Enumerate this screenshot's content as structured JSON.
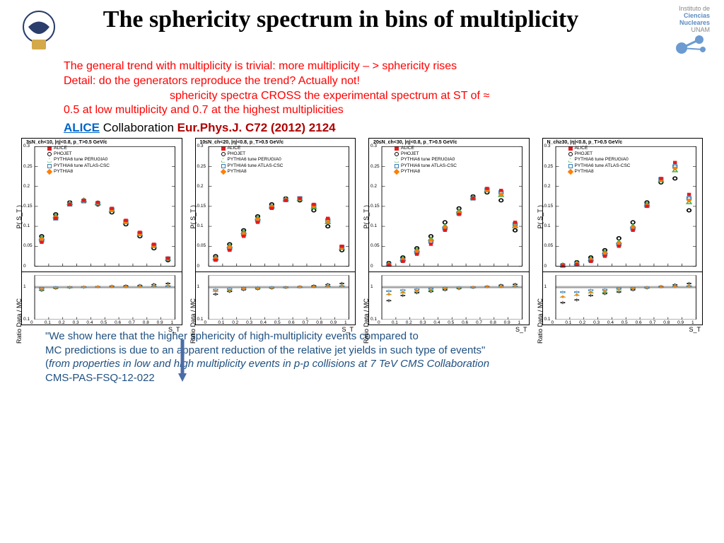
{
  "title": "The sphericity spectrum in bins of multiplicity",
  "logos": {
    "left_alt": "UNAM shield",
    "right_line1": "Instituto de",
    "right_line2": "Ciencias",
    "right_line3": "Nucleares",
    "right_line4": "UNAM"
  },
  "red_text": {
    "line1": "The general trend with multiplicity is  trivial: more multiplicity – > sphericity rises",
    "line2": "Detail: do the generators reproduce the trend? Actually not!",
    "line3_indent": "sphericity spectra CROSS the experimental spectrum at ST of ≈",
    "line4": "0.5 at low multiplicity and 0.7 at the highest multiplicities"
  },
  "alice": {
    "link": "ALICE",
    "collab": " Collaboration ",
    "ref": "Eur.Phys.J. C72 (2012) 2124"
  },
  "footer": {
    "q1": "\"We show here that the higher sphericity of high-multiplicity events compared to",
    "q2": "MC predictions is due to an apparent reduction of the relative jet yields in such type of events\"",
    "q3_open": "(",
    "q3_italic": "from  properties in low and high multiplicity events in p-p collisions at 7 TeV CMS Collaboration",
    "q4": "CMS-PAS-FSQ-12-022"
  },
  "chart_common": {
    "y_main_label": "P( S_T )",
    "y_ratio_label": "Ratio  Data / MC",
    "x_label": "S_T",
    "y_main_lim": [
      0,
      0.3
    ],
    "y_main_ticks": [
      0,
      0.05,
      0.1,
      0.15,
      0.2,
      0.25,
      0.3
    ],
    "y_ratio_ticks": [
      0.1,
      1
    ],
    "x_ticks": [
      0,
      0.1,
      0.2,
      0.3,
      0.4,
      0.5,
      0.6,
      0.7,
      0.8,
      0.9,
      1
    ],
    "legend_items": [
      {
        "label": "ALICE",
        "color": "#e41a1c",
        "marker": "square-fill"
      },
      {
        "label": "PHOJET",
        "color": "#000000",
        "marker": "circle-open"
      },
      {
        "label": "PYTHIA6 tune PERUGIA0",
        "color": "#4daf4a",
        "marker": "triangle-open"
      },
      {
        "label": "PYTHIA6 tune ATLAS-CSC",
        "color": "#377eb8",
        "marker": "square-open"
      },
      {
        "label": "PYTHIA8",
        "color": "#ff7f00",
        "marker": "diamond-fill"
      }
    ],
    "colors": {
      "alice": "#e41a1c",
      "phojet": "#000000",
      "perugia": "#4daf4a",
      "atlas": "#377eb8",
      "pythia8": "#ff7f00",
      "grid": "#cccccc",
      "ratio_band": "#d0d0d0"
    },
    "marker_size": 4,
    "x_bins": [
      0.05,
      0.15,
      0.25,
      0.35,
      0.45,
      0.55,
      0.65,
      0.75,
      0.85,
      0.95
    ]
  },
  "panels": [
    {
      "title": "3≤N_ch<10, |η|<0.8, p_T>0.5 GeV/c",
      "alice": [
        0.06,
        0.12,
        0.155,
        0.165,
        0.16,
        0.145,
        0.115,
        0.085,
        0.055,
        0.02
      ],
      "phojet": [
        0.075,
        0.13,
        0.16,
        0.165,
        0.155,
        0.135,
        0.105,
        0.075,
        0.045,
        0.015
      ],
      "perugia": [
        0.07,
        0.125,
        0.158,
        0.165,
        0.158,
        0.14,
        0.11,
        0.08,
        0.05,
        0.018
      ],
      "atlas": [
        0.065,
        0.12,
        0.155,
        0.163,
        0.157,
        0.142,
        0.112,
        0.082,
        0.052,
        0.019
      ],
      "pythia8": [
        0.068,
        0.123,
        0.156,
        0.164,
        0.158,
        0.14,
        0.11,
        0.08,
        0.05,
        0.018
      ],
      "ratio_phojet": [
        0.8,
        0.92,
        0.97,
        1.0,
        1.03,
        1.07,
        1.1,
        1.13,
        1.2,
        1.3
      ],
      "ratio_perugia": [
        0.85,
        0.95,
        0.98,
        1.0,
        1.02,
        1.04,
        1.05,
        1.07,
        1.1,
        1.12
      ],
      "ratio_atlas": [
        0.92,
        0.98,
        1.0,
        1.01,
        1.02,
        1.02,
        1.03,
        1.04,
        1.05,
        1.06
      ],
      "ratio_pythia8": [
        0.88,
        0.96,
        0.99,
        1.0,
        1.02,
        1.03,
        1.05,
        1.07,
        1.1,
        1.12
      ]
    },
    {
      "title": "10≤N_ch<20, |η|<0.8, p_T>0.5 GeV/c",
      "alice": [
        0.015,
        0.04,
        0.075,
        0.11,
        0.145,
        0.165,
        0.17,
        0.155,
        0.12,
        0.05
      ],
      "phojet": [
        0.025,
        0.055,
        0.09,
        0.125,
        0.155,
        0.17,
        0.165,
        0.14,
        0.1,
        0.04
      ],
      "perugia": [
        0.02,
        0.05,
        0.085,
        0.12,
        0.15,
        0.168,
        0.168,
        0.148,
        0.11,
        0.045
      ],
      "atlas": [
        0.018,
        0.045,
        0.08,
        0.115,
        0.148,
        0.166,
        0.17,
        0.152,
        0.115,
        0.048
      ],
      "pythia8": [
        0.02,
        0.048,
        0.082,
        0.118,
        0.15,
        0.167,
        0.168,
        0.15,
        0.112,
        0.046
      ],
      "ratio_phojet": [
        0.6,
        0.73,
        0.83,
        0.88,
        0.93,
        0.97,
        1.03,
        1.1,
        1.2,
        1.3
      ],
      "ratio_perugia": [
        0.75,
        0.8,
        0.88,
        0.92,
        0.96,
        0.98,
        1.01,
        1.05,
        1.1,
        1.12
      ],
      "ratio_atlas": [
        0.83,
        0.88,
        0.93,
        0.96,
        0.98,
        0.99,
        1.0,
        1.02,
        1.05,
        1.06
      ],
      "ratio_pythia8": [
        0.75,
        0.82,
        0.9,
        0.93,
        0.96,
        0.98,
        1.01,
        1.04,
        1.08,
        1.1
      ]
    },
    {
      "title": "20≤N_ch<30, |η|<0.8, p_T>0.5 GeV/c",
      "alice": [
        0.003,
        0.012,
        0.03,
        0.055,
        0.09,
        0.13,
        0.17,
        0.195,
        0.19,
        0.11
      ],
      "phojet": [
        0.008,
        0.022,
        0.045,
        0.075,
        0.11,
        0.145,
        0.175,
        0.185,
        0.165,
        0.09
      ],
      "perugia": [
        0.005,
        0.018,
        0.04,
        0.068,
        0.1,
        0.138,
        0.172,
        0.19,
        0.178,
        0.1
      ],
      "atlas": [
        0.004,
        0.015,
        0.035,
        0.062,
        0.095,
        0.133,
        0.17,
        0.192,
        0.185,
        0.105
      ],
      "pythia8": [
        0.005,
        0.017,
        0.038,
        0.065,
        0.098,
        0.135,
        0.17,
        0.19,
        0.18,
        0.1
      ],
      "ratio_phojet": [
        0.38,
        0.55,
        0.67,
        0.73,
        0.82,
        0.9,
        0.97,
        1.05,
        1.15,
        1.22
      ],
      "ratio_perugia": [
        0.6,
        0.67,
        0.75,
        0.81,
        0.9,
        0.94,
        0.99,
        1.03,
        1.07,
        1.1
      ],
      "ratio_atlas": [
        0.75,
        0.8,
        0.85,
        0.9,
        0.95,
        0.97,
        1.0,
        1.02,
        1.03,
        1.05
      ],
      "ratio_pythia8": [
        0.6,
        0.7,
        0.78,
        0.84,
        0.92,
        0.96,
        1.0,
        1.03,
        1.06,
        1.1
      ]
    },
    {
      "title": "N_ch≥30, |η|<0.8, p_T>0.5 GeV/c",
      "alice": [
        0.001,
        0.004,
        0.012,
        0.025,
        0.05,
        0.09,
        0.15,
        0.22,
        0.26,
        0.18
      ],
      "phojet": [
        0.003,
        0.01,
        0.022,
        0.04,
        0.07,
        0.11,
        0.16,
        0.21,
        0.22,
        0.14
      ],
      "perugia": [
        0.002,
        0.007,
        0.018,
        0.035,
        0.06,
        0.1,
        0.155,
        0.215,
        0.24,
        0.16
      ],
      "atlas": [
        0.0015,
        0.006,
        0.015,
        0.03,
        0.055,
        0.095,
        0.152,
        0.218,
        0.25,
        0.17
      ],
      "pythia8": [
        0.002,
        0.007,
        0.017,
        0.033,
        0.058,
        0.098,
        0.153,
        0.216,
        0.245,
        0.165
      ],
      "ratio_phojet": [
        0.33,
        0.4,
        0.55,
        0.63,
        0.71,
        0.82,
        0.94,
        1.05,
        1.18,
        1.3
      ],
      "ratio_perugia": [
        0.5,
        0.57,
        0.67,
        0.71,
        0.83,
        0.9,
        0.97,
        1.02,
        1.08,
        1.12
      ],
      "ratio_atlas": [
        0.7,
        0.7,
        0.8,
        0.83,
        0.91,
        0.94,
        0.98,
        1.01,
        1.04,
        1.06
      ],
      "ratio_pythia8": [
        0.5,
        0.57,
        0.7,
        0.75,
        0.86,
        0.92,
        0.98,
        1.02,
        1.06,
        1.1
      ]
    }
  ]
}
